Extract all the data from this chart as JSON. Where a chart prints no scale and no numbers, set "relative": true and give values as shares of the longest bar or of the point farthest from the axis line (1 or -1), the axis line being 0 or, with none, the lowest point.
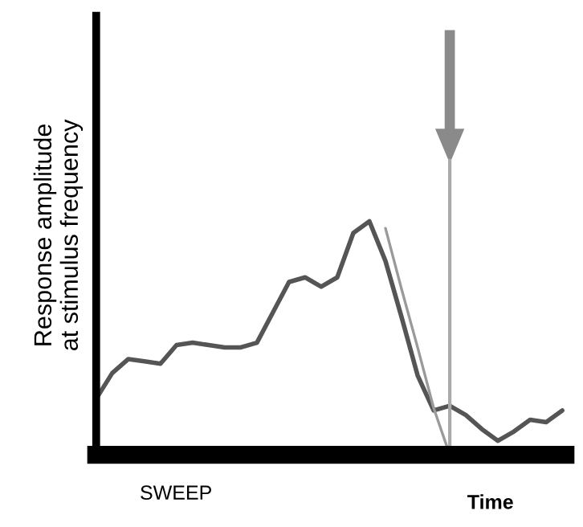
{
  "chart_data": {
    "type": "line",
    "relative": true,
    "xlabel": "Time",
    "ylabel": "Response amplitude\nat stimulus frequency",
    "annotations": [
      "SWEEP"
    ],
    "categories": [
      null,
      null,
      null,
      null,
      null,
      null,
      null,
      null,
      null,
      null,
      null,
      null,
      null,
      null,
      null,
      null,
      null,
      null,
      null,
      null,
      null,
      null,
      null,
      null,
      null,
      null,
      null,
      null,
      null,
      null
    ],
    "series": [
      {
        "color": "#555555",
        "values": [
          0.24,
          0.35,
          0.41,
          0.4,
          0.39,
          0.47,
          0.48,
          0.47,
          0.46,
          0.46,
          0.48,
          0.61,
          0.74,
          0.76,
          0.72,
          0.76,
          0.95,
          1.0,
          0.83,
          0.59,
          0.34,
          0.19,
          0.21,
          0.17,
          0.11,
          0.06,
          0.1,
          0.15,
          0.14,
          0.19
        ]
      },
      {
        "color": "#9a9a9a",
        "values": [
          null,
          null,
          null,
          null,
          null,
          null,
          null,
          null,
          null,
          null,
          null,
          null,
          null,
          null,
          null,
          null,
          null,
          null,
          0.97,
          0.71,
          0.46,
          0.2,
          0.0,
          null,
          null,
          null,
          null,
          null,
          null,
          null
        ]
      }
    ],
    "legend": false
  }
}
